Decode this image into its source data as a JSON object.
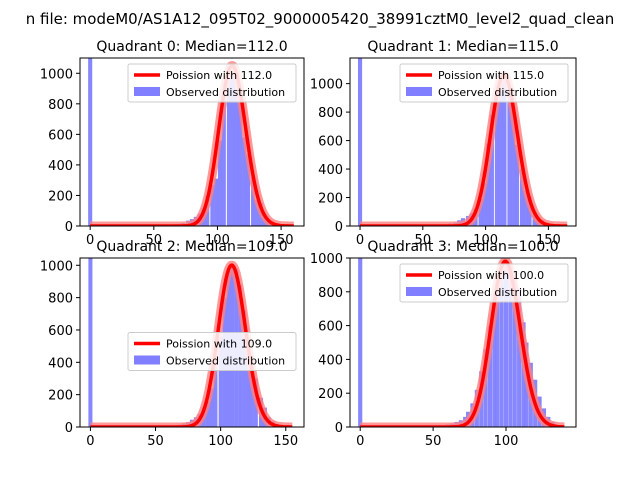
{
  "figure": {
    "suptitle": "n file: modeM0/AS1A12_095T02_9000005420_38991cztM0_level2_quad_clean"
  },
  "colors": {
    "bar": "#7f7fff",
    "curve": "#ff0000",
    "curve_alpha": "#ff7f7f"
  },
  "chart_data": [
    {
      "type": "bar",
      "title": "Quadrant 0: Median=112.0",
      "xlim": [
        -8,
        168
      ],
      "ylim": [
        0,
        1100
      ],
      "xticks": [
        0,
        50,
        100,
        150
      ],
      "yticks": [
        0,
        200,
        400,
        600,
        800,
        1000
      ],
      "legend": {
        "placement": "top-right",
        "entries": [
          "Poission with 112.0",
          "Observed distribution"
        ]
      },
      "hist": {
        "bin_width": 3.2,
        "x": [
          0,
          54,
          57,
          61,
          64,
          67,
          70,
          73,
          77,
          80,
          83,
          86,
          89,
          92,
          96,
          99,
          102,
          105,
          109,
          112,
          115,
          118,
          121,
          124,
          128,
          131,
          134,
          137,
          140,
          143,
          147,
          150,
          153,
          156,
          159
        ],
        "values": [
          1100,
          3,
          3,
          5,
          8,
          12,
          15,
          20,
          35,
          45,
          60,
          80,
          110,
          200,
          270,
          310,
          560,
          880,
          1050,
          1000,
          990,
          860,
          580,
          470,
          320,
          170,
          150,
          60,
          40,
          25,
          12,
          8,
          5,
          3,
          2
        ]
      },
      "poisson": {
        "mean": 112.0,
        "x_range": [
          0,
          160
        ]
      }
    },
    {
      "type": "bar",
      "title": "Quadrant 1: Median=115.0",
      "xlim": [
        -8,
        172
      ],
      "ylim": [
        0,
        1180
      ],
      "xticks": [
        0,
        50,
        100,
        150
      ],
      "yticks": [
        0,
        200,
        400,
        600,
        800,
        1000
      ],
      "legend": {
        "placement": "top-right",
        "entries": [
          "Poission with 115.0",
          "Observed distribution"
        ]
      },
      "hist": {
        "bin_width": 3.3,
        "x": [
          0,
          52,
          56,
          59,
          62,
          66,
          69,
          72,
          76,
          79,
          82,
          86,
          89,
          92,
          96,
          99,
          102,
          105,
          109,
          112,
          115,
          119,
          122,
          125,
          129,
          132,
          135,
          139,
          142,
          145,
          149,
          152,
          155,
          158,
          162
        ],
        "values": [
          1180,
          3,
          4,
          5,
          8,
          10,
          12,
          18,
          25,
          40,
          55,
          70,
          90,
          120,
          190,
          300,
          580,
          780,
          880,
          1030,
          1060,
          960,
          830,
          570,
          400,
          250,
          210,
          100,
          60,
          40,
          25,
          15,
          8,
          4,
          2
        ]
      },
      "poisson": {
        "mean": 115.0,
        "x_range": [
          0,
          165
        ]
      }
    },
    {
      "type": "bar",
      "title": "Quadrant 2: Median=109.0",
      "xlim": [
        -8,
        164
      ],
      "ylim": [
        0,
        1045
      ],
      "xticks": [
        0,
        50,
        100,
        150
      ],
      "yticks": [
        0,
        200,
        400,
        600,
        800,
        1000
      ],
      "legend": {
        "placement": "center-right",
        "entries": [
          "Poission with 109.0",
          "Observed distribution"
        ]
      },
      "hist": {
        "bin_width": 3.1,
        "x": [
          0,
          53,
          56,
          59,
          62,
          66,
          69,
          72,
          75,
          78,
          81,
          84,
          87,
          90,
          93,
          96,
          100,
          103,
          106,
          109,
          112,
          115,
          118,
          121,
          124,
          127,
          131,
          134,
          137,
          140,
          143,
          146,
          149,
          152,
          155
        ],
        "values": [
          1045,
          3,
          4,
          6,
          8,
          10,
          15,
          22,
          30,
          45,
          60,
          80,
          120,
          160,
          240,
          380,
          560,
          800,
          960,
          1000,
          980,
          880,
          720,
          560,
          400,
          300,
          180,
          120,
          60,
          35,
          20,
          12,
          6,
          3,
          2
        ]
      },
      "poisson": {
        "mean": 109.0,
        "x_range": [
          0,
          155
        ]
      }
    },
    {
      "type": "bar",
      "title": "Quadrant 3: Median=100.0",
      "xlim": [
        -7,
        148
      ],
      "ylim": [
        0,
        1000
      ],
      "xticks": [
        0,
        50,
        100
      ],
      "yticks": [
        0,
        200,
        400,
        600,
        800,
        1000
      ],
      "legend": {
        "placement": "top-right",
        "entries": [
          "Poission with 100.0",
          "Observed distribution"
        ]
      },
      "hist": {
        "bin_width": 2.85,
        "x": [
          0,
          46,
          49,
          52,
          54,
          57,
          60,
          63,
          66,
          69,
          72,
          74,
          77,
          80,
          83,
          86,
          89,
          92,
          94,
          97,
          100,
          103,
          106,
          109,
          112,
          114,
          117,
          120,
          123,
          126,
          129,
          132,
          134,
          137,
          140
        ],
        "values": [
          1000,
          3,
          4,
          6,
          8,
          10,
          15,
          20,
          30,
          40,
          60,
          90,
          140,
          220,
          330,
          460,
          600,
          790,
          900,
          950,
          980,
          960,
          910,
          820,
          620,
          500,
          380,
          280,
          180,
          110,
          60,
          30,
          15,
          6,
          3
        ]
      },
      "poisson": {
        "mean": 100.0,
        "x_range": [
          0,
          140
        ]
      }
    }
  ]
}
